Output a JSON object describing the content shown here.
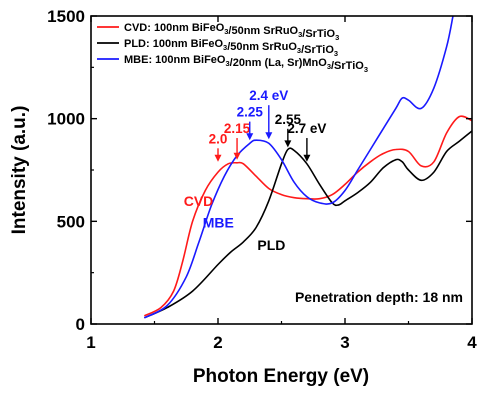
{
  "chart_data": {
    "type": "line",
    "title": "",
    "xlabel": "Photon Energy (eV)",
    "ylabel": "Intensity (a.u.)",
    "xlim": [
      1,
      4
    ],
    "ylim": [
      0,
      1500
    ],
    "xticks": [
      1,
      2,
      3,
      4
    ],
    "yticks": [
      0,
      500,
      1000,
      1500
    ],
    "grid": false,
    "legend_position": "top-left",
    "legend": [
      {
        "parts": [
          [
            "CVD: 100nm BiFeO",
            ""
          ],
          [
            "3",
            "sub"
          ],
          [
            "/50nm SrRuO",
            ""
          ],
          [
            "3",
            "sub"
          ],
          [
            "/SrTiO",
            ""
          ],
          [
            "3",
            "sub"
          ]
        ],
        "color": "#ff1a1a"
      },
      {
        "parts": [
          [
            "PLD: 100nm BiFeO",
            ""
          ],
          [
            "3",
            "sub"
          ],
          [
            "/50nm SrRuO",
            ""
          ],
          [
            "3",
            "sub"
          ],
          [
            "/SrTiO",
            ""
          ],
          [
            "3",
            "sub"
          ]
        ],
        "color": "#000000"
      },
      {
        "parts": [
          [
            "MBE: 100nm BiFeO",
            ""
          ],
          [
            "3",
            "sub"
          ],
          [
            "/20nm (La, Sr)MnO",
            ""
          ],
          [
            "3",
            "sub"
          ],
          [
            "/SrTiO",
            ""
          ],
          [
            "3",
            "sub"
          ]
        ],
        "color": "#1a1aff"
      }
    ],
    "series": [
      {
        "name": "CVD",
        "color": "#ff1a1a",
        "x": [
          1.42,
          1.55,
          1.65,
          1.72,
          1.8,
          1.9,
          2.0,
          2.08,
          2.15,
          2.2,
          2.3,
          2.4,
          2.5,
          2.6,
          2.7,
          2.8,
          2.9,
          3.0,
          3.1,
          3.2,
          3.3,
          3.4,
          3.5,
          3.6,
          3.7,
          3.8,
          3.9,
          4.0
        ],
        "y": [
          40,
          80,
          160,
          300,
          500,
          650,
          740,
          780,
          785,
          780,
          720,
          660,
          630,
          615,
          610,
          610,
          630,
          680,
          740,
          790,
          830,
          850,
          840,
          770,
          790,
          930,
          1010,
          990
        ]
      },
      {
        "name": "PLD",
        "color": "#000000",
        "x": [
          1.42,
          1.6,
          1.8,
          2.0,
          2.1,
          2.2,
          2.3,
          2.4,
          2.5,
          2.55,
          2.6,
          2.7,
          2.8,
          2.9,
          2.95,
          3.0,
          3.1,
          3.2,
          3.3,
          3.4,
          3.45,
          3.5,
          3.6,
          3.7,
          3.8,
          3.9,
          4.0
        ],
        "y": [
          30,
          80,
          160,
          290,
          350,
          400,
          470,
          600,
          780,
          850,
          845,
          780,
          680,
          590,
          580,
          600,
          640,
          690,
          760,
          800,
          790,
          750,
          700,
          740,
          840,
          890,
          940
        ]
      },
      {
        "name": "MBE",
        "color": "#1a1aff",
        "x": [
          1.42,
          1.6,
          1.75,
          1.85,
          1.95,
          2.05,
          2.15,
          2.25,
          2.3,
          2.4,
          2.5,
          2.6,
          2.7,
          2.8,
          2.9,
          3.0,
          3.1,
          3.2,
          3.3,
          3.4,
          3.45,
          3.5,
          3.6,
          3.7,
          3.8,
          3.85
        ],
        "y": [
          30,
          90,
          230,
          400,
          580,
          720,
          820,
          880,
          895,
          880,
          800,
          690,
          620,
          590,
          590,
          650,
          750,
          850,
          950,
          1050,
          1100,
          1090,
          1050,
          1150,
          1350,
          1500
        ]
      }
    ],
    "annotations": {
      "series_labels": [
        {
          "text": "CVD",
          "x": 1.73,
          "y": 600,
          "color": "#ff1a1a"
        },
        {
          "text": "MBE",
          "x": 1.88,
          "y": 495,
          "color": "#1a1aff"
        },
        {
          "text": "PLD",
          "x": 2.31,
          "y": 385,
          "color": "#000000"
        }
      ],
      "peaks": [
        {
          "text": "2.0",
          "x": 2.0,
          "tip_y": 790,
          "label_y": 880,
          "color": "#ff1a1a"
        },
        {
          "text": "2.15",
          "x": 2.15,
          "tip_y": 800,
          "label_y": 930,
          "color": "#ff1a1a"
        },
        {
          "text": "2.25",
          "x": 2.25,
          "tip_y": 895,
          "label_y": 1010,
          "color": "#1a1aff"
        },
        {
          "text": "2.4 eV",
          "x": 2.4,
          "tip_y": 900,
          "label_y": 1090,
          "color": "#1a1aff"
        },
        {
          "text": "2.55",
          "x": 2.55,
          "tip_y": 860,
          "label_y": 975,
          "color": "#000000"
        },
        {
          "text": "2.7 eV",
          "x": 2.7,
          "tip_y": 790,
          "label_y": 930,
          "color": "#000000"
        }
      ],
      "note": "Penetration depth: 18 nm"
    }
  }
}
